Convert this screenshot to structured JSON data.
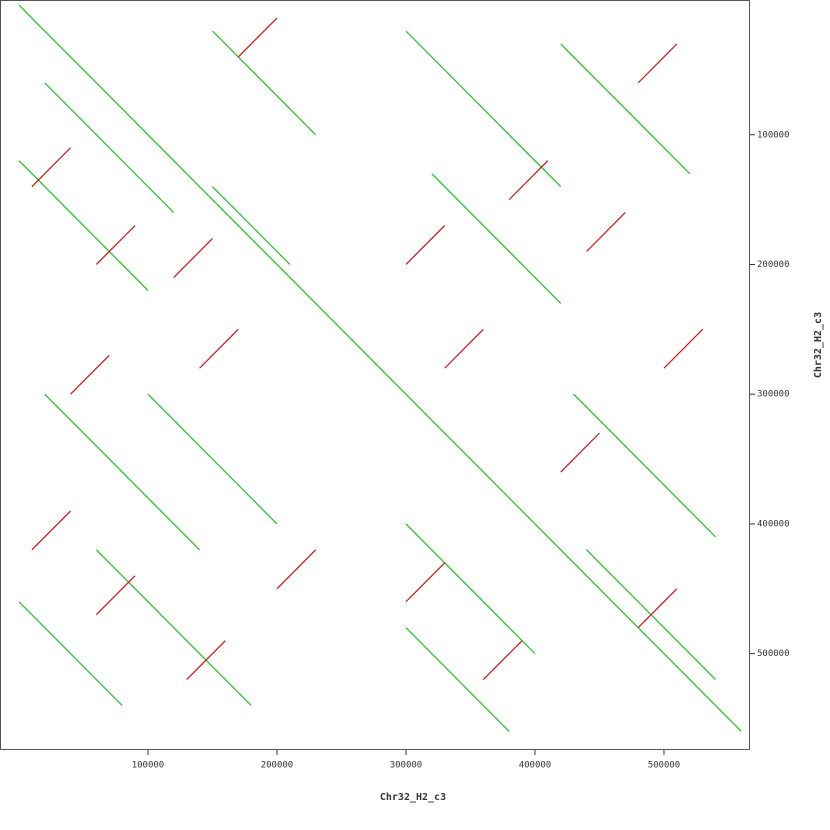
{
  "chart_data": {
    "type": "dotplot",
    "x_label": "Chr32_H2_c3",
    "y_label": "Chr32_H2_c3",
    "xlim": [
      -14700,
      566700
    ],
    "ylim": [
      -3900,
      574300
    ],
    "y_inverted": true,
    "xticks": [
      100000,
      200000,
      300000,
      400000,
      500000
    ],
    "yticks": [
      100000,
      200000,
      300000,
      400000,
      500000
    ],
    "series": [
      {
        "color": "#22bb22",
        "segments": [
          [
            0,
            0,
            560000,
            560000
          ],
          [
            20000,
            60000,
            120000,
            160000
          ],
          [
            150000,
            20000,
            230000,
            100000
          ],
          [
            300000,
            20000,
            420000,
            140000
          ],
          [
            420000,
            30000,
            520000,
            130000
          ],
          [
            20000,
            300000,
            140000,
            420000
          ],
          [
            60000,
            420000,
            180000,
            540000
          ],
          [
            300000,
            400000,
            400000,
            500000
          ],
          [
            430000,
            300000,
            540000,
            410000
          ],
          [
            320000,
            130000,
            420000,
            230000
          ],
          [
            100000,
            300000,
            200000,
            400000
          ],
          [
            440000,
            420000,
            540000,
            520000
          ],
          [
            0,
            120000,
            100000,
            220000
          ],
          [
            150000,
            140000,
            210000,
            200000
          ],
          [
            300000,
            480000,
            380000,
            560000
          ],
          [
            0,
            460000,
            80000,
            540000
          ]
        ]
      },
      {
        "color": "#cc1111",
        "segments": [
          [
            10000,
            140000,
            40000,
            110000
          ],
          [
            60000,
            200000,
            90000,
            170000
          ],
          [
            120000,
            210000,
            150000,
            180000
          ],
          [
            300000,
            200000,
            330000,
            170000
          ],
          [
            380000,
            150000,
            410000,
            120000
          ],
          [
            440000,
            190000,
            470000,
            160000
          ],
          [
            480000,
            60000,
            510000,
            30000
          ],
          [
            170000,
            40000,
            200000,
            10000
          ],
          [
            10000,
            420000,
            40000,
            390000
          ],
          [
            60000,
            470000,
            90000,
            440000
          ],
          [
            130000,
            520000,
            160000,
            490000
          ],
          [
            300000,
            460000,
            330000,
            430000
          ],
          [
            360000,
            520000,
            390000,
            490000
          ],
          [
            420000,
            360000,
            450000,
            330000
          ],
          [
            480000,
            480000,
            510000,
            450000
          ],
          [
            200000,
            450000,
            230000,
            420000
          ],
          [
            40000,
            300000,
            70000,
            270000
          ],
          [
            140000,
            280000,
            170000,
            250000
          ],
          [
            330000,
            280000,
            360000,
            250000
          ],
          [
            500000,
            280000,
            530000,
            250000
          ]
        ]
      }
    ]
  }
}
